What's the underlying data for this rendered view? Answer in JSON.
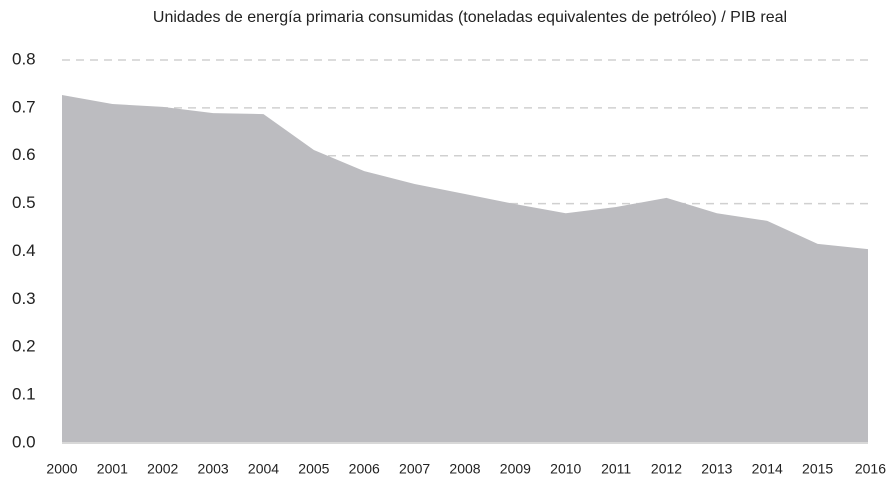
{
  "chart_data": {
    "type": "area",
    "subtitle": "Unidades de energía primaria consumidas (toneladas equivalentes de petróleo) / PIB real",
    "categories": [
      "2000",
      "2001",
      "2002",
      "2003",
      "2004",
      "2005",
      "2006",
      "2007",
      "2008",
      "2009",
      "2010",
      "2011",
      "2012",
      "2013",
      "2014",
      "2015",
      "2016"
    ],
    "values": [
      0.727,
      0.708,
      0.702,
      0.689,
      0.687,
      0.612,
      0.568,
      0.541,
      0.52,
      0.499,
      0.48,
      0.493,
      0.512,
      0.48,
      0.464,
      0.416,
      0.405
    ],
    "color": "#bcbcc0",
    "ylim": [
      0,
      0.8
    ],
    "yticks": [
      {
        "value": 0,
        "label": "0.0"
      },
      0.1,
      0.2,
      0.3,
      0.4,
      0.5,
      0.6,
      0.7,
      0.8
    ],
    "grid": true
  }
}
